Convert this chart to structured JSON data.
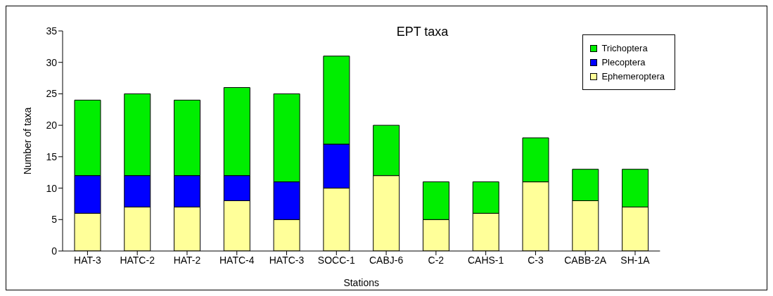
{
  "chart_data": {
    "type": "bar",
    "title": "EPT taxa",
    "xlabel": "Stations",
    "ylabel": "Number of taxa",
    "categories": [
      "HAT-3",
      "HATC-2",
      "HAT-2",
      "HATC-4",
      "HATC-3",
      "SOCC-1",
      "CABJ-6",
      "C-2",
      "CAHS-1",
      "C-3",
      "CABB-2A",
      "SH-1A"
    ],
    "stacked": true,
    "series": [
      {
        "name": "Ephemeroptera",
        "color": "#ffff99",
        "values": [
          6,
          7,
          7,
          8,
          5,
          10,
          12,
          5,
          6,
          11,
          8,
          7
        ]
      },
      {
        "name": "Plecoptera",
        "color": "#0000ff",
        "values": [
          6,
          5,
          5,
          4,
          6,
          7,
          0,
          0,
          0,
          0,
          0,
          0
        ]
      },
      {
        "name": "Trichoptera",
        "color": "#00ee00",
        "values": [
          12,
          13,
          12,
          14,
          14,
          14,
          8,
          6,
          5,
          7,
          5,
          6
        ]
      }
    ],
    "ylim": [
      0,
      35
    ],
    "yticks": [
      0,
      5,
      10,
      15,
      20,
      25,
      30,
      35
    ],
    "legend": "top right"
  }
}
